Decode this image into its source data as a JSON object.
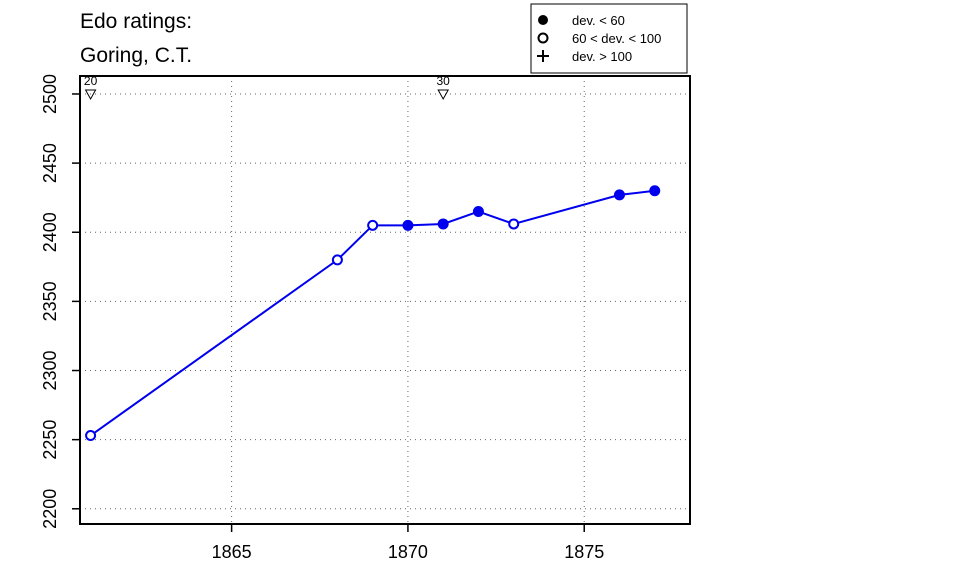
{
  "chart_data": {
    "type": "line",
    "title": [
      "Edo ratings:",
      "Goring, C.T."
    ],
    "xlabel": "",
    "ylabel": "",
    "xlim": [
      1860.7,
      1878.0
    ],
    "ylim": [
      2189,
      2513
    ],
    "x_ticks": [
      1865,
      1870,
      1875
    ],
    "y_ticks": [
      2200,
      2250,
      2300,
      2350,
      2400,
      2450,
      2500
    ],
    "grid": true,
    "legend_position": "top-right",
    "legend": [
      {
        "symbol": "filled-circle",
        "label": "dev. < 60"
      },
      {
        "symbol": "open-circle",
        "label": "60 < dev. < 100"
      },
      {
        "symbol": "plus",
        "label": "dev. > 100"
      }
    ],
    "series": [
      {
        "color": "#0000ee",
        "points": [
          {
            "x": 1861,
            "y": 2253,
            "marker": "open"
          },
          {
            "x": 1868,
            "y": 2380,
            "marker": "open"
          },
          {
            "x": 1869,
            "y": 2405,
            "marker": "open"
          },
          {
            "x": 1870,
            "y": 2405,
            "marker": "filled"
          },
          {
            "x": 1871,
            "y": 2406,
            "marker": "filled"
          },
          {
            "x": 1872,
            "y": 2415,
            "marker": "filled"
          },
          {
            "x": 1873,
            "y": 2406,
            "marker": "open"
          },
          {
            "x": 1876,
            "y": 2427,
            "marker": "filled"
          },
          {
            "x": 1877,
            "y": 2430,
            "marker": "filled"
          }
        ]
      }
    ],
    "markers": [
      {
        "x": 1861,
        "y": 2500,
        "label": "20"
      },
      {
        "x": 1871,
        "y": 2500,
        "label": "30"
      }
    ]
  }
}
